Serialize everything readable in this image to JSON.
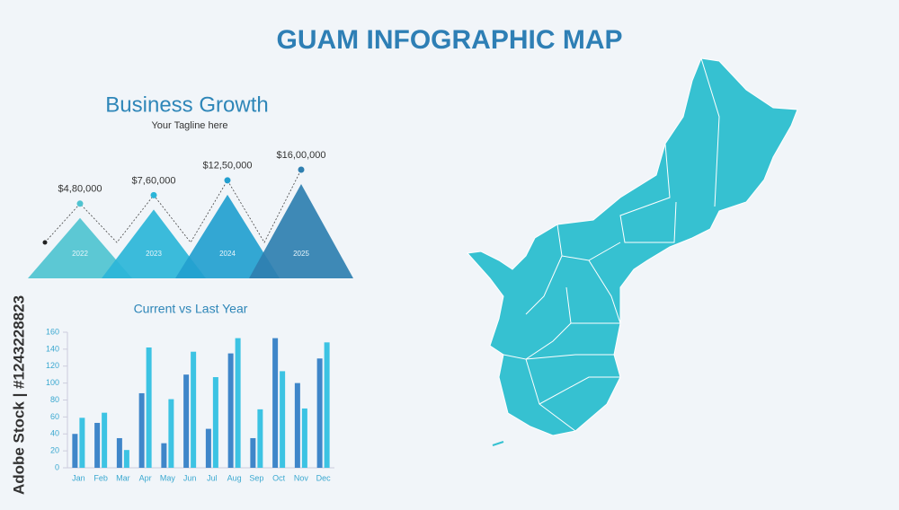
{
  "title": "GUAM INFOGRAPHIC MAP",
  "watermark": "Adobe Stock | #1243228823",
  "chart_data": [
    {
      "type": "triangle",
      "title": "Business Growth",
      "subtitle": "Your Tagline here",
      "categories": [
        "2022",
        "2023",
        "2024",
        "2025"
      ],
      "values": [
        480000,
        760000,
        1250000,
        1600000
      ],
      "value_labels": [
        "$4,80,000",
        "$7,60,000",
        "$12,50,000",
        "$16,00,000"
      ],
      "colors": [
        "#4fc3d0",
        "#2bb5d8",
        "#239fcf",
        "#2f7fb0"
      ]
    },
    {
      "type": "bar",
      "title": "Current vs Last Year",
      "categories": [
        "Jan",
        "Feb",
        "Mar",
        "Apr",
        "May",
        "Jun",
        "Jul",
        "Aug",
        "Sep",
        "Oct",
        "Nov",
        "Dec"
      ],
      "series": [
        {
          "color": "#3f86c9",
          "values": [
            40,
            53,
            35,
            88,
            29,
            110,
            46,
            135,
            35,
            153,
            100,
            129
          ]
        },
        {
          "color": "#3cc3e3",
          "values": [
            59,
            65,
            21,
            142,
            81,
            137,
            107,
            153,
            69,
            114,
            70,
            148
          ]
        }
      ],
      "ylim": [
        0,
        160
      ],
      "yticks": [
        0,
        20,
        40,
        60,
        80,
        100,
        120,
        140,
        160
      ],
      "grid": false
    }
  ]
}
